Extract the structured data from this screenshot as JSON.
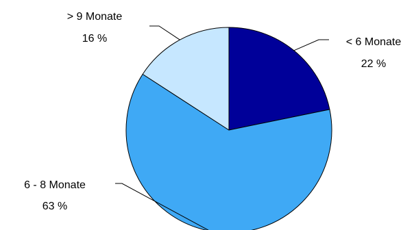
{
  "chart_data": {
    "type": "pie",
    "title": "",
    "slices": [
      {
        "name": "< 6 Monate",
        "value": 22,
        "value_label": "22 %",
        "color": "#000099"
      },
      {
        "name": "6 - 8 Monate",
        "value": 63,
        "value_label": "63 %",
        "color": "#3FA9F5"
      },
      {
        "name": "> 9 Monate",
        "value": 16,
        "value_label": "16 %",
        "color": "#C6E7FF"
      }
    ],
    "start_angle": "12 o'clock",
    "direction": "clockwise",
    "legend": "none",
    "labels": "outside with leader lines"
  }
}
